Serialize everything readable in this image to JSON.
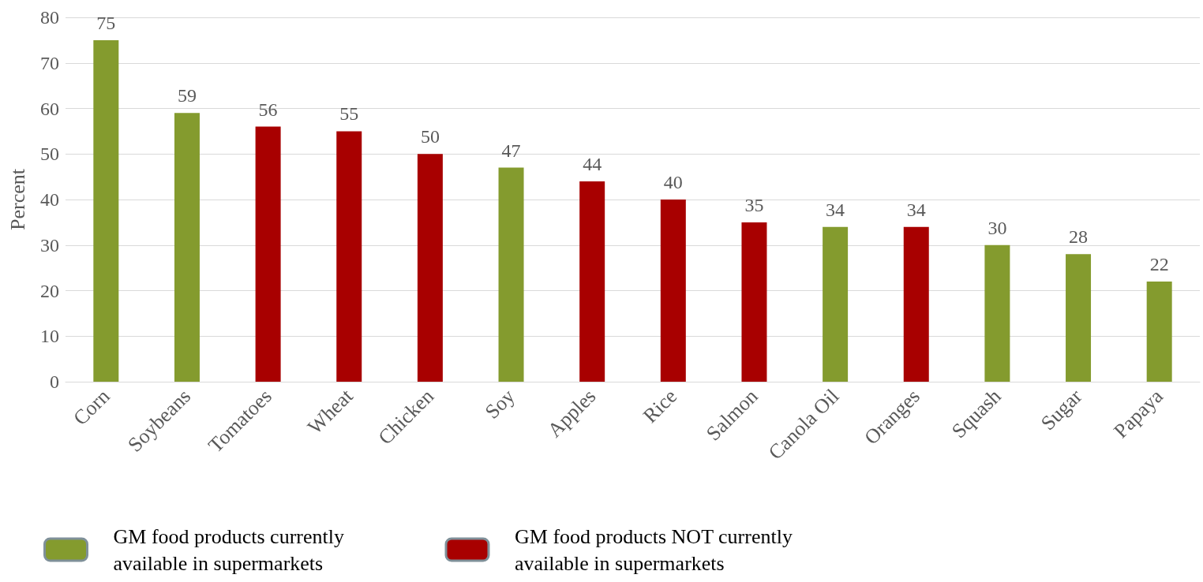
{
  "chart_data": {
    "type": "bar",
    "ylabel": "Percent",
    "categories": [
      "Corn",
      "Soybeans",
      "Tomatoes",
      "Wheat",
      "Chicken",
      "Soy",
      "Apples",
      "Rice",
      "Salmon",
      "Canola Oil",
      "Oranges",
      "Squash",
      "Sugar",
      "Papaya"
    ],
    "series": [
      {
        "name": "GM food products currently available in supermarkets",
        "color": "#849b2e",
        "values": [
          75,
          59,
          null,
          null,
          null,
          47,
          null,
          null,
          null,
          34,
          null,
          30,
          28,
          22
        ]
      },
      {
        "name": "GM food products NOT currently available in supermarkets",
        "color": "#a80000",
        "values": [
          null,
          null,
          56,
          55,
          50,
          null,
          44,
          40,
          35,
          null,
          34,
          null,
          null,
          null
        ]
      }
    ],
    "ylim": [
      0,
      80
    ],
    "yticks": [
      0,
      10,
      20,
      30,
      40,
      50,
      60,
      70,
      80
    ],
    "grid": "y",
    "legend": "bottom left",
    "data_labels": true
  }
}
